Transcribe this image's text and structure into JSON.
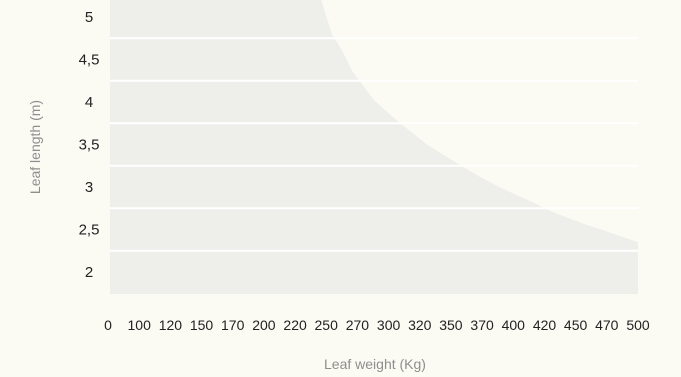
{
  "chart_data": {
    "type": "area",
    "title": "",
    "xlabel": "Leaf weight (Kg)",
    "ylabel": "Leaf length (m)",
    "x_ticks": [
      "0",
      "100",
      "120",
      "150",
      "170",
      "200",
      "220",
      "250",
      "270",
      "300",
      "320",
      "350",
      "370",
      "400",
      "420",
      "450",
      "470",
      "500"
    ],
    "y_ticks": [
      "2",
      "2,5",
      "3",
      "3,5",
      "4",
      "4,5",
      "5"
    ],
    "xlim": [
      0,
      500
    ],
    "ylim": [
      2,
      5
    ],
    "grid": true,
    "series": [
      {
        "x": [
          0,
          200,
          210,
          220,
          230,
          250,
          270,
          300,
          330,
          350,
          370,
          400,
          420,
          450,
          470,
          500
        ],
        "y": [
          5,
          5,
          4.8,
          4.6,
          4.35,
          4.02,
          3.8,
          3.5,
          3.27,
          3.12,
          2.99,
          2.82,
          2.7,
          2.56,
          2.48,
          2.35
        ]
      }
    ],
    "colors": {
      "area": "#eeeeea",
      "background": "#fbfbf4",
      "grid": "#ffffff"
    }
  }
}
